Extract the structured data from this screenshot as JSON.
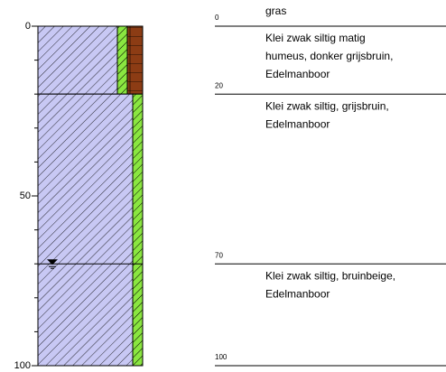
{
  "depth_axis": {
    "ylim": [
      0,
      100
    ],
    "yticks": [
      0,
      50,
      100
    ]
  },
  "boundaries": [
    0,
    20,
    70,
    100
  ],
  "surface_label": "gras",
  "layers": [
    {
      "lines": [
        "Klei zwak siltig matig",
        "humeus, donker grijsbruin,",
        "Edelmanboor"
      ]
    },
    {
      "lines": [
        "Klei zwak siltig, grijsbruin,",
        "Edelmanboor"
      ]
    },
    {
      "lines": [
        "Klei zwak siltig, bruinbeige,",
        "Edelmanboor"
      ]
    }
  ],
  "groundwater_level": 70
}
